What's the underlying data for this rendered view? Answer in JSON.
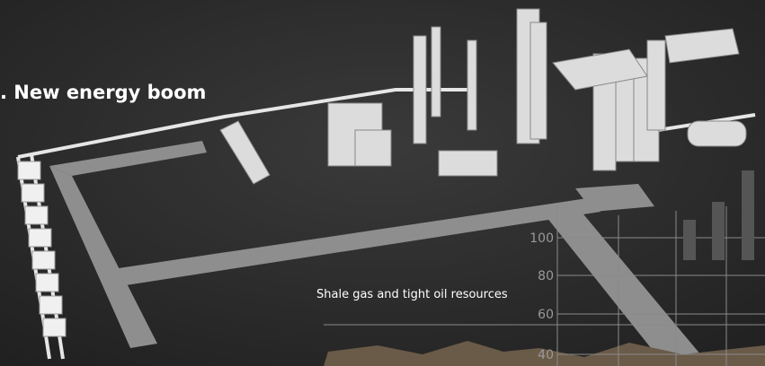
{
  "title": ". New energy boom",
  "inset": {
    "caption": "Shale gas and tight oil resources",
    "axis_labels": [
      100,
      80,
      60,
      40
    ]
  }
}
